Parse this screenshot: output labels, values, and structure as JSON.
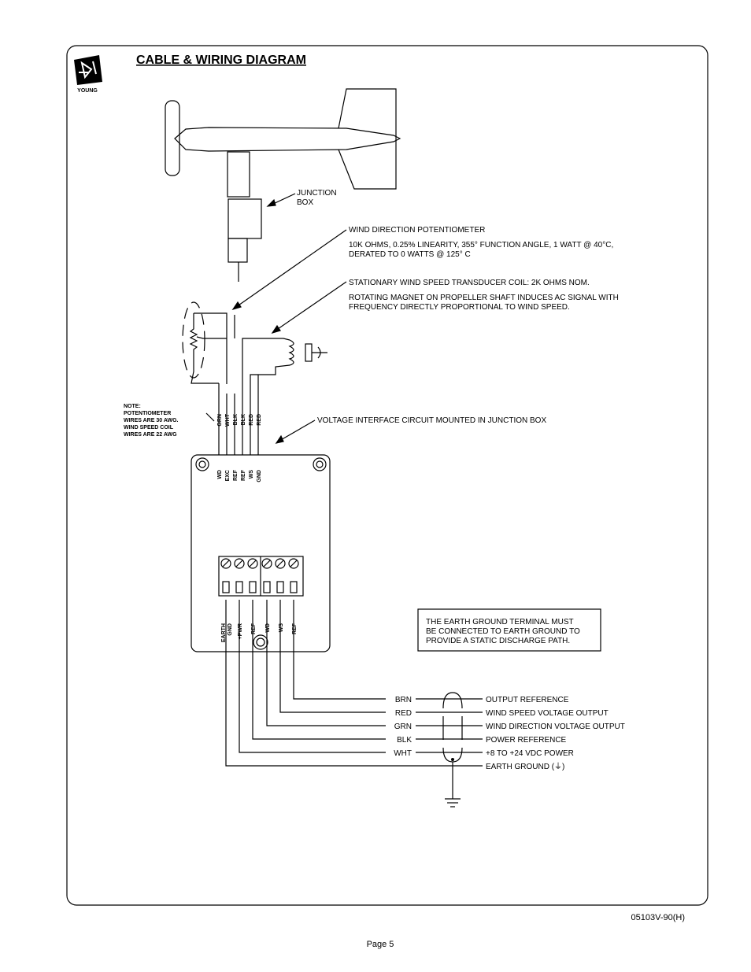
{
  "header": {
    "logo": "YOUNG",
    "title": "CABLE & WIRING DIAGRAM"
  },
  "junction_box_label": [
    "JUNCTION",
    "BOX"
  ],
  "potentiometer": {
    "title": "WIND DIRECTION POTENTIOMETER",
    "lines": [
      "10K OHMS, 0.25% LINEARITY, 355° FUNCTION ANGLE, 1 WATT @ 40°C,",
      "DERATED TO 0 WATTS @ 125° C"
    ]
  },
  "coil": {
    "title": "STATIONARY WIND SPEED TRANSDUCER COIL: 2K OHMS NOM.",
    "lines": [
      "ROTATING MAGNET ON PROPELLER SHAFT INDUCES AC SIGNAL WITH",
      "FREQUENCY DIRECTLY PROPORTIONAL TO WIND SPEED."
    ]
  },
  "sensor_wires": [
    "GRN",
    "WHT",
    "BLK",
    "BLK",
    "RED",
    "RED"
  ],
  "note": [
    "NOTE:",
    "POTENTIOMETER",
    "WIRES ARE 30 AWG.",
    "WIND SPEED COIL",
    "WIRES ARE 22 AWG"
  ],
  "circuit_label": "VOLTAGE INTERFACE CIRCUIT MOUNTED IN JUNCTION BOX",
  "board_inputs": [
    "WD",
    "EXC",
    "REF",
    "REF",
    "WS",
    "GND"
  ],
  "terminals": [
    [
      "EARTH",
      "GND"
    ],
    [
      "+PWR"
    ],
    [
      "REF"
    ],
    [
      "WD"
    ],
    [
      "WS"
    ],
    [
      "REF"
    ]
  ],
  "earth_note": [
    "THE EARTH GROUND TERMINAL MUST",
    "BE CONNECTED TO EARTH GROUND TO",
    "PROVIDE A STATIC DISCHARGE PATH."
  ],
  "cable": [
    {
      "color": "BRN",
      "function": "OUTPUT REFERENCE"
    },
    {
      "color": "RED",
      "function": "WIND SPEED VOLTAGE OUTPUT"
    },
    {
      "color": "GRN",
      "function": "WIND DIRECTION VOLTAGE OUTPUT"
    },
    {
      "color": "BLK",
      "function": "POWER REFERENCE"
    },
    {
      "color": "WHT",
      "function": "+8 TO +24 VDC POWER"
    },
    {
      "color": null,
      "function": "EARTH GROUND (⏚)"
    }
  ],
  "footer": {
    "doc_id": "05103V-90(H)",
    "page": "Page 5"
  }
}
